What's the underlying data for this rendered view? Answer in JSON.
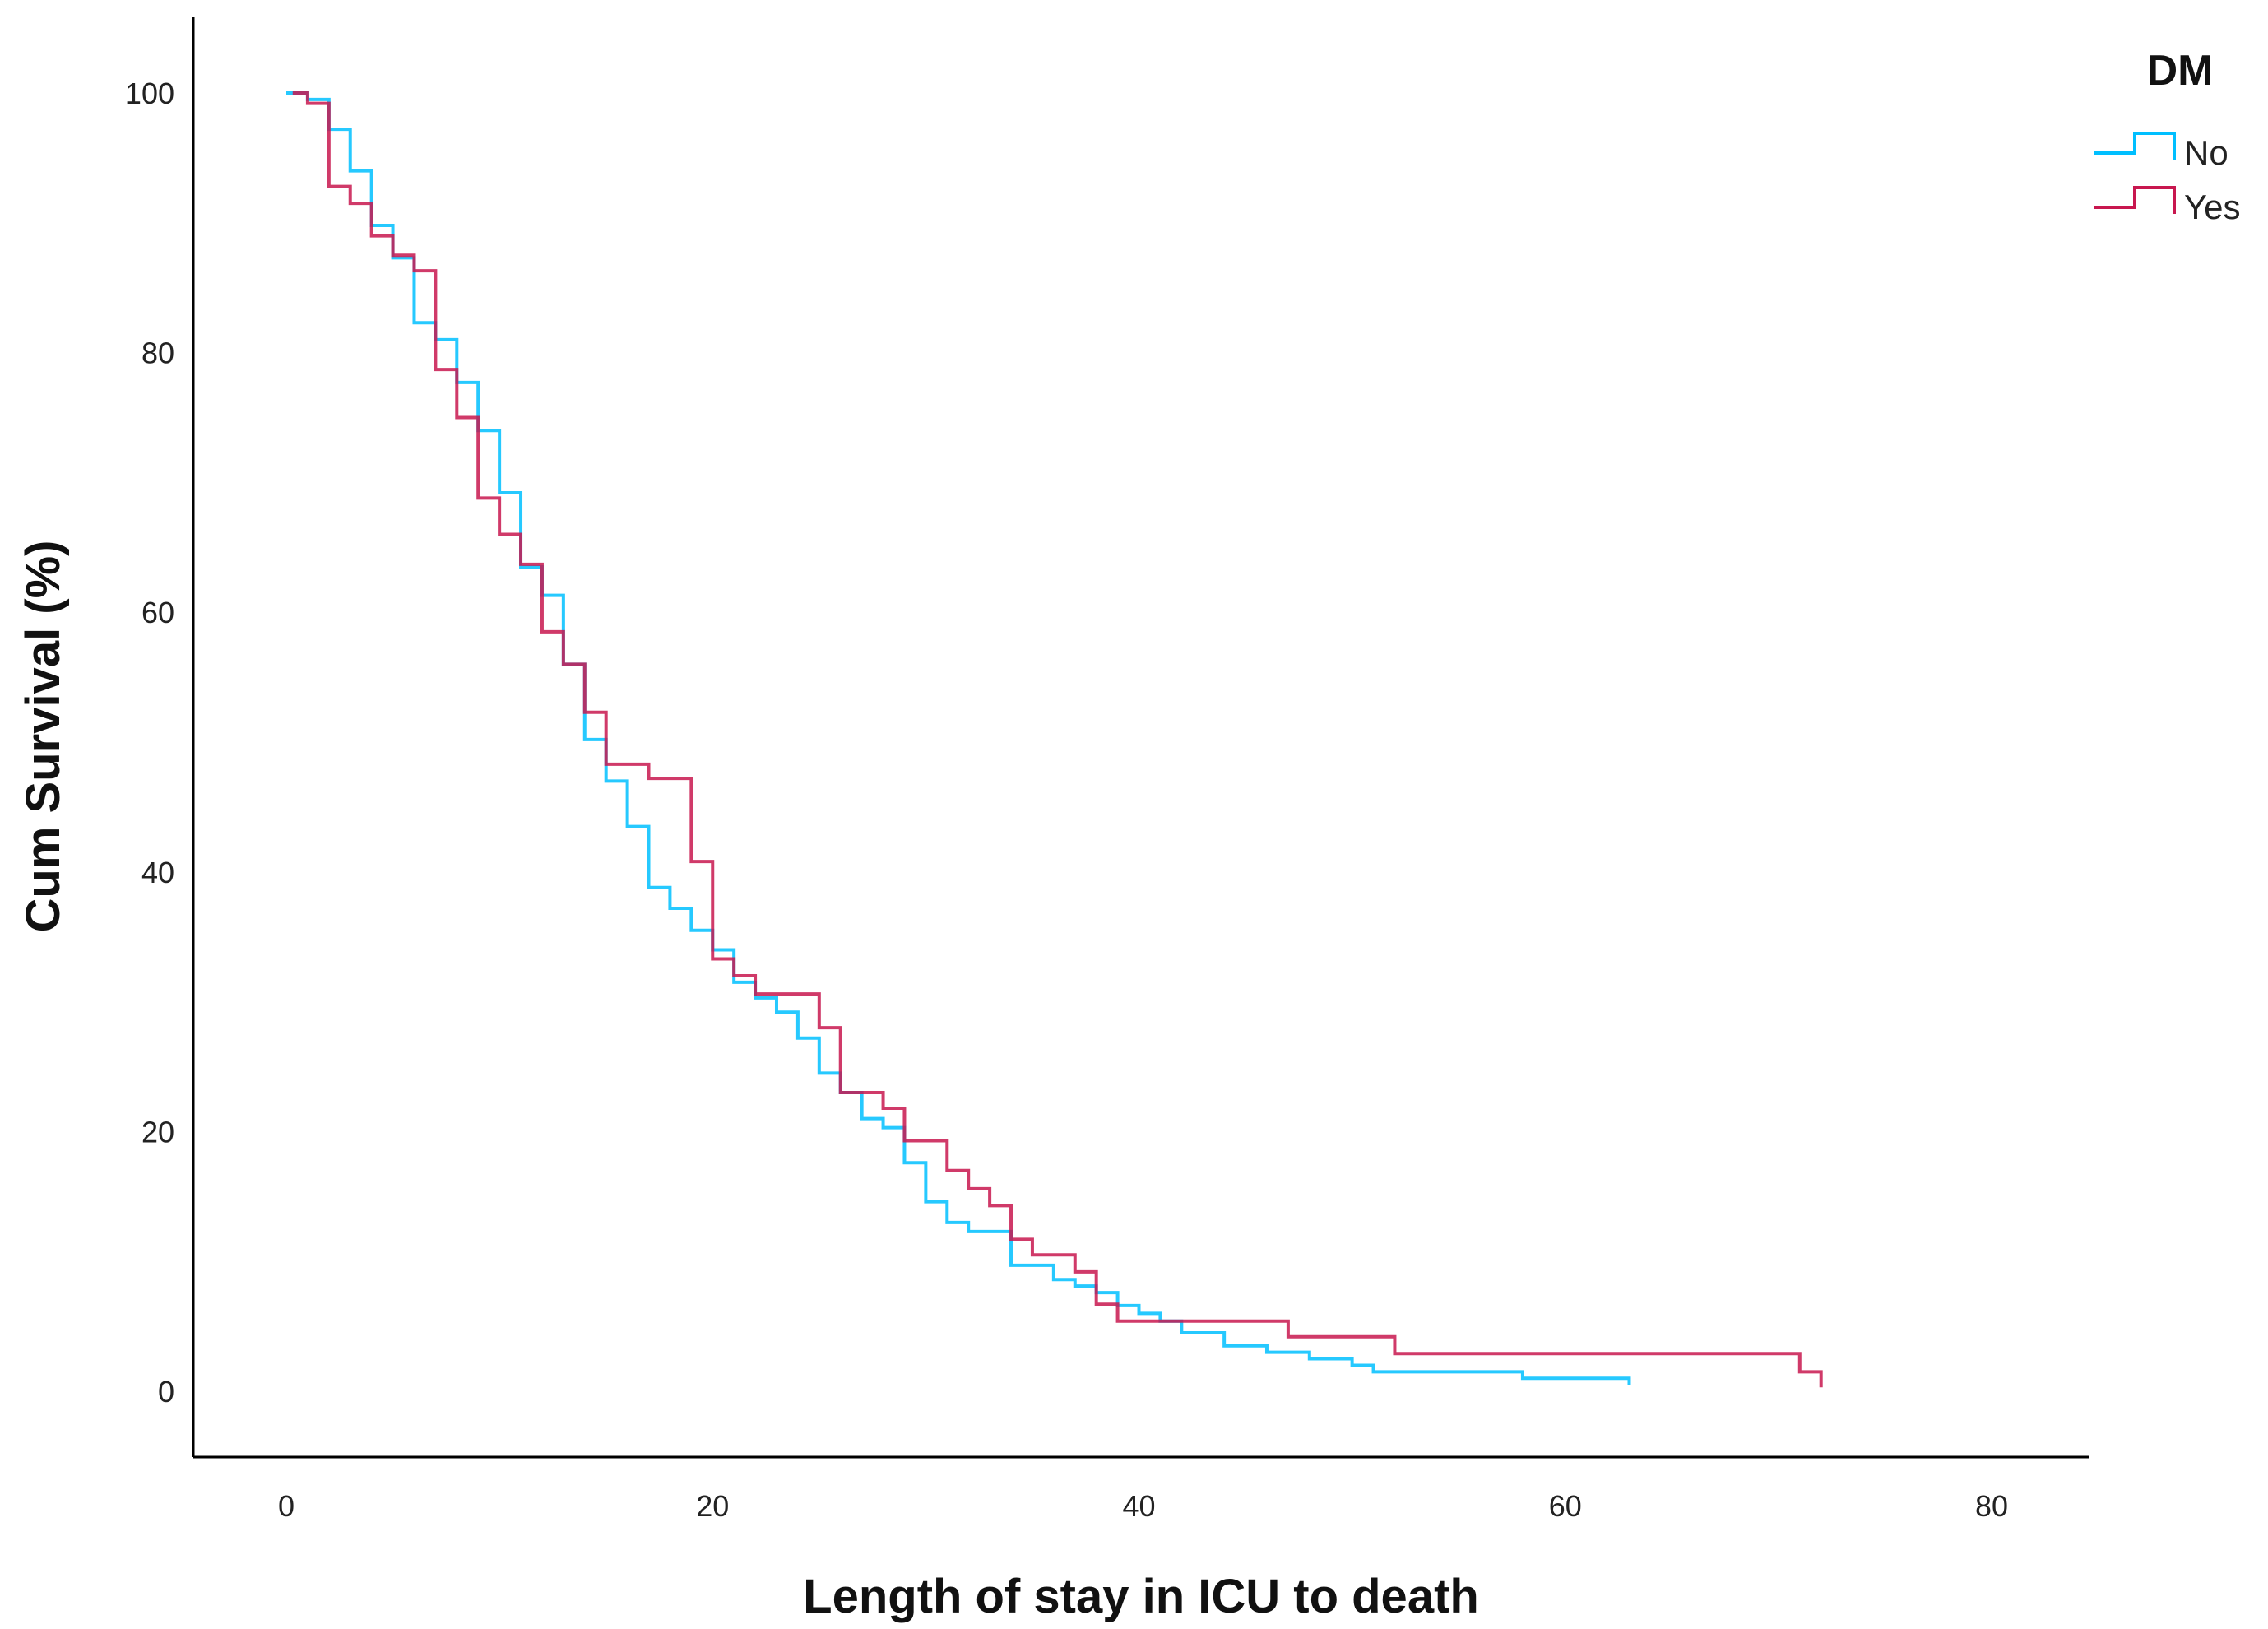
{
  "chart_data": {
    "type": "line",
    "subtype": "kaplan-meier step",
    "title": "",
    "xlabel": "Length of stay in ICU to death",
    "ylabel": "Cum Survival (%)",
    "xlim": [
      -4.5,
      85
    ],
    "ylim": [
      -5,
      106
    ],
    "xticks": [
      0,
      20,
      40,
      60,
      80
    ],
    "yticks": [
      0,
      20,
      40,
      60,
      80,
      100
    ],
    "grid": false,
    "legend": {
      "title": "DM",
      "position": "top-right"
    },
    "series": [
      {
        "name": "No",
        "color": "#00bfff",
        "x": [
          0,
          1,
          2,
          3,
          4,
          5,
          6,
          7,
          8,
          9,
          10,
          11,
          12,
          13,
          14,
          15,
          16,
          17,
          18,
          19,
          20,
          21,
          22,
          23,
          24,
          25,
          26,
          27,
          28,
          29,
          30,
          31,
          32,
          34,
          36,
          37,
          38,
          39,
          40,
          41,
          42,
          44,
          46,
          48,
          50,
          51,
          58,
          63
        ],
        "y": [
          100,
          99.5,
          97.2,
          94,
          89.8,
          87.3,
          82.3,
          81,
          77.7,
          74,
          69.2,
          63.5,
          61.3,
          56,
          50.2,
          47,
          43.5,
          38.8,
          37.2,
          35.5,
          34,
          31.5,
          30.3,
          29.2,
          27.2,
          24.5,
          23,
          21,
          20.3,
          17.6,
          14.6,
          13,
          12.3,
          9.7,
          8.6,
          8.1,
          7.6,
          6.6,
          6,
          5.4,
          4.5,
          3.5,
          3,
          2.5,
          2,
          1.5,
          1,
          0.5
        ]
      },
      {
        "name": "Yes",
        "color": "#c8174f",
        "x": [
          0.3,
          1,
          2,
          3,
          4,
          5,
          6,
          7,
          8,
          9,
          10,
          11,
          12,
          13,
          14,
          15,
          17,
          19,
          20,
          21,
          22,
          25,
          26,
          28,
          29,
          31,
          32,
          33,
          34,
          35,
          37,
          38,
          39,
          47,
          52,
          71,
          72
        ],
        "y": [
          100,
          99.2,
          92.8,
          91.5,
          89,
          87.5,
          86.3,
          78.7,
          75,
          68.8,
          66,
          63.7,
          58.5,
          56,
          52.3,
          48.3,
          47.2,
          40.8,
          33.3,
          32,
          30.6,
          28,
          23,
          21.8,
          19.3,
          17,
          15.6,
          14.3,
          11.7,
          10.5,
          9.2,
          6.7,
          5.4,
          4.2,
          2.9,
          1.5,
          0.3
        ]
      }
    ]
  }
}
